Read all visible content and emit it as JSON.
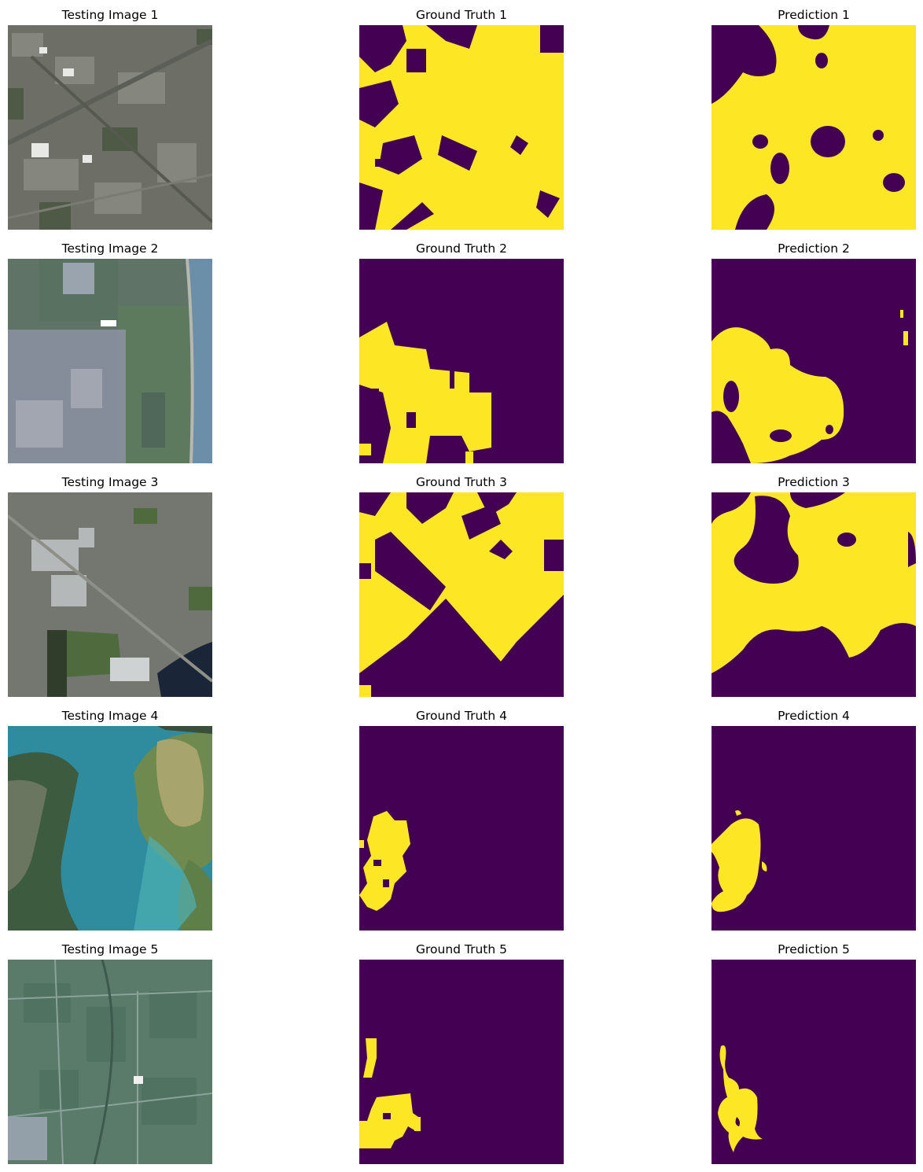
{
  "figure": {
    "rows": [
      {
        "testing_title": "Testing Image 1",
        "truth_title": "Ground Truth 1",
        "prediction_title": "Prediction 1",
        "scene": "urban residential area with roads and a river corridor"
      },
      {
        "testing_title": "Testing Image 2",
        "truth_title": "Ground Truth 2",
        "prediction_title": "Prediction 2",
        "scene": "town beside farmland and a coastline"
      },
      {
        "testing_title": "Testing Image 3",
        "truth_title": "Ground Truth 3",
        "prediction_title": "Prediction 3",
        "scene": "suburb with industrial buildings, park and a lake"
      },
      {
        "testing_title": "Testing Image 4",
        "truth_title": "Ground Truth 4",
        "prediction_title": "Prediction 4",
        "scene": "turquoise bay with peninsulas and a small settlement"
      },
      {
        "testing_title": "Testing Image 5",
        "truth_title": "Ground Truth 5",
        "prediction_title": "Prediction 5",
        "scene": "rural farmland with fields and a small settlement"
      }
    ]
  },
  "colors": {
    "mask_background": "#440154",
    "mask_foreground": "#fde725",
    "page_background": "#ffffff"
  }
}
